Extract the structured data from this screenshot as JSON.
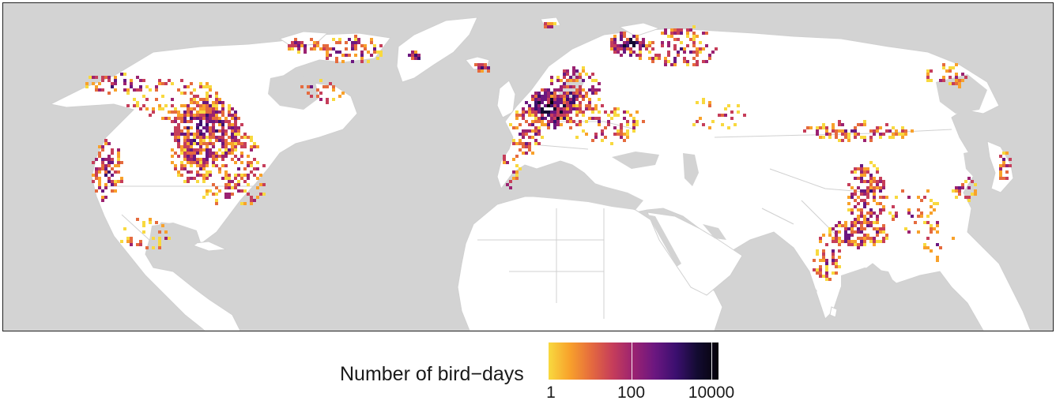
{
  "map": {
    "ocean_color": "#d3d3d3",
    "land_color": "#ffffff",
    "border_color": "#d0d0d0",
    "region": "North America, Europe, Africa, Asia"
  },
  "legend": {
    "title": "Number of bird−days",
    "scale": "log10",
    "domain": [
      1,
      10000
    ],
    "ticks": [
      {
        "value": 1,
        "label": "1"
      },
      {
        "value": 100,
        "label": "100"
      },
      {
        "value": 10000,
        "label": "10000"
      }
    ],
    "colors": [
      "#f8d93f",
      "#f8a12b",
      "#e56b3e",
      "#c63e5a",
      "#9b2271",
      "#6b1780",
      "#3b0f6f",
      "#130b31",
      "#050308"
    ]
  }
}
